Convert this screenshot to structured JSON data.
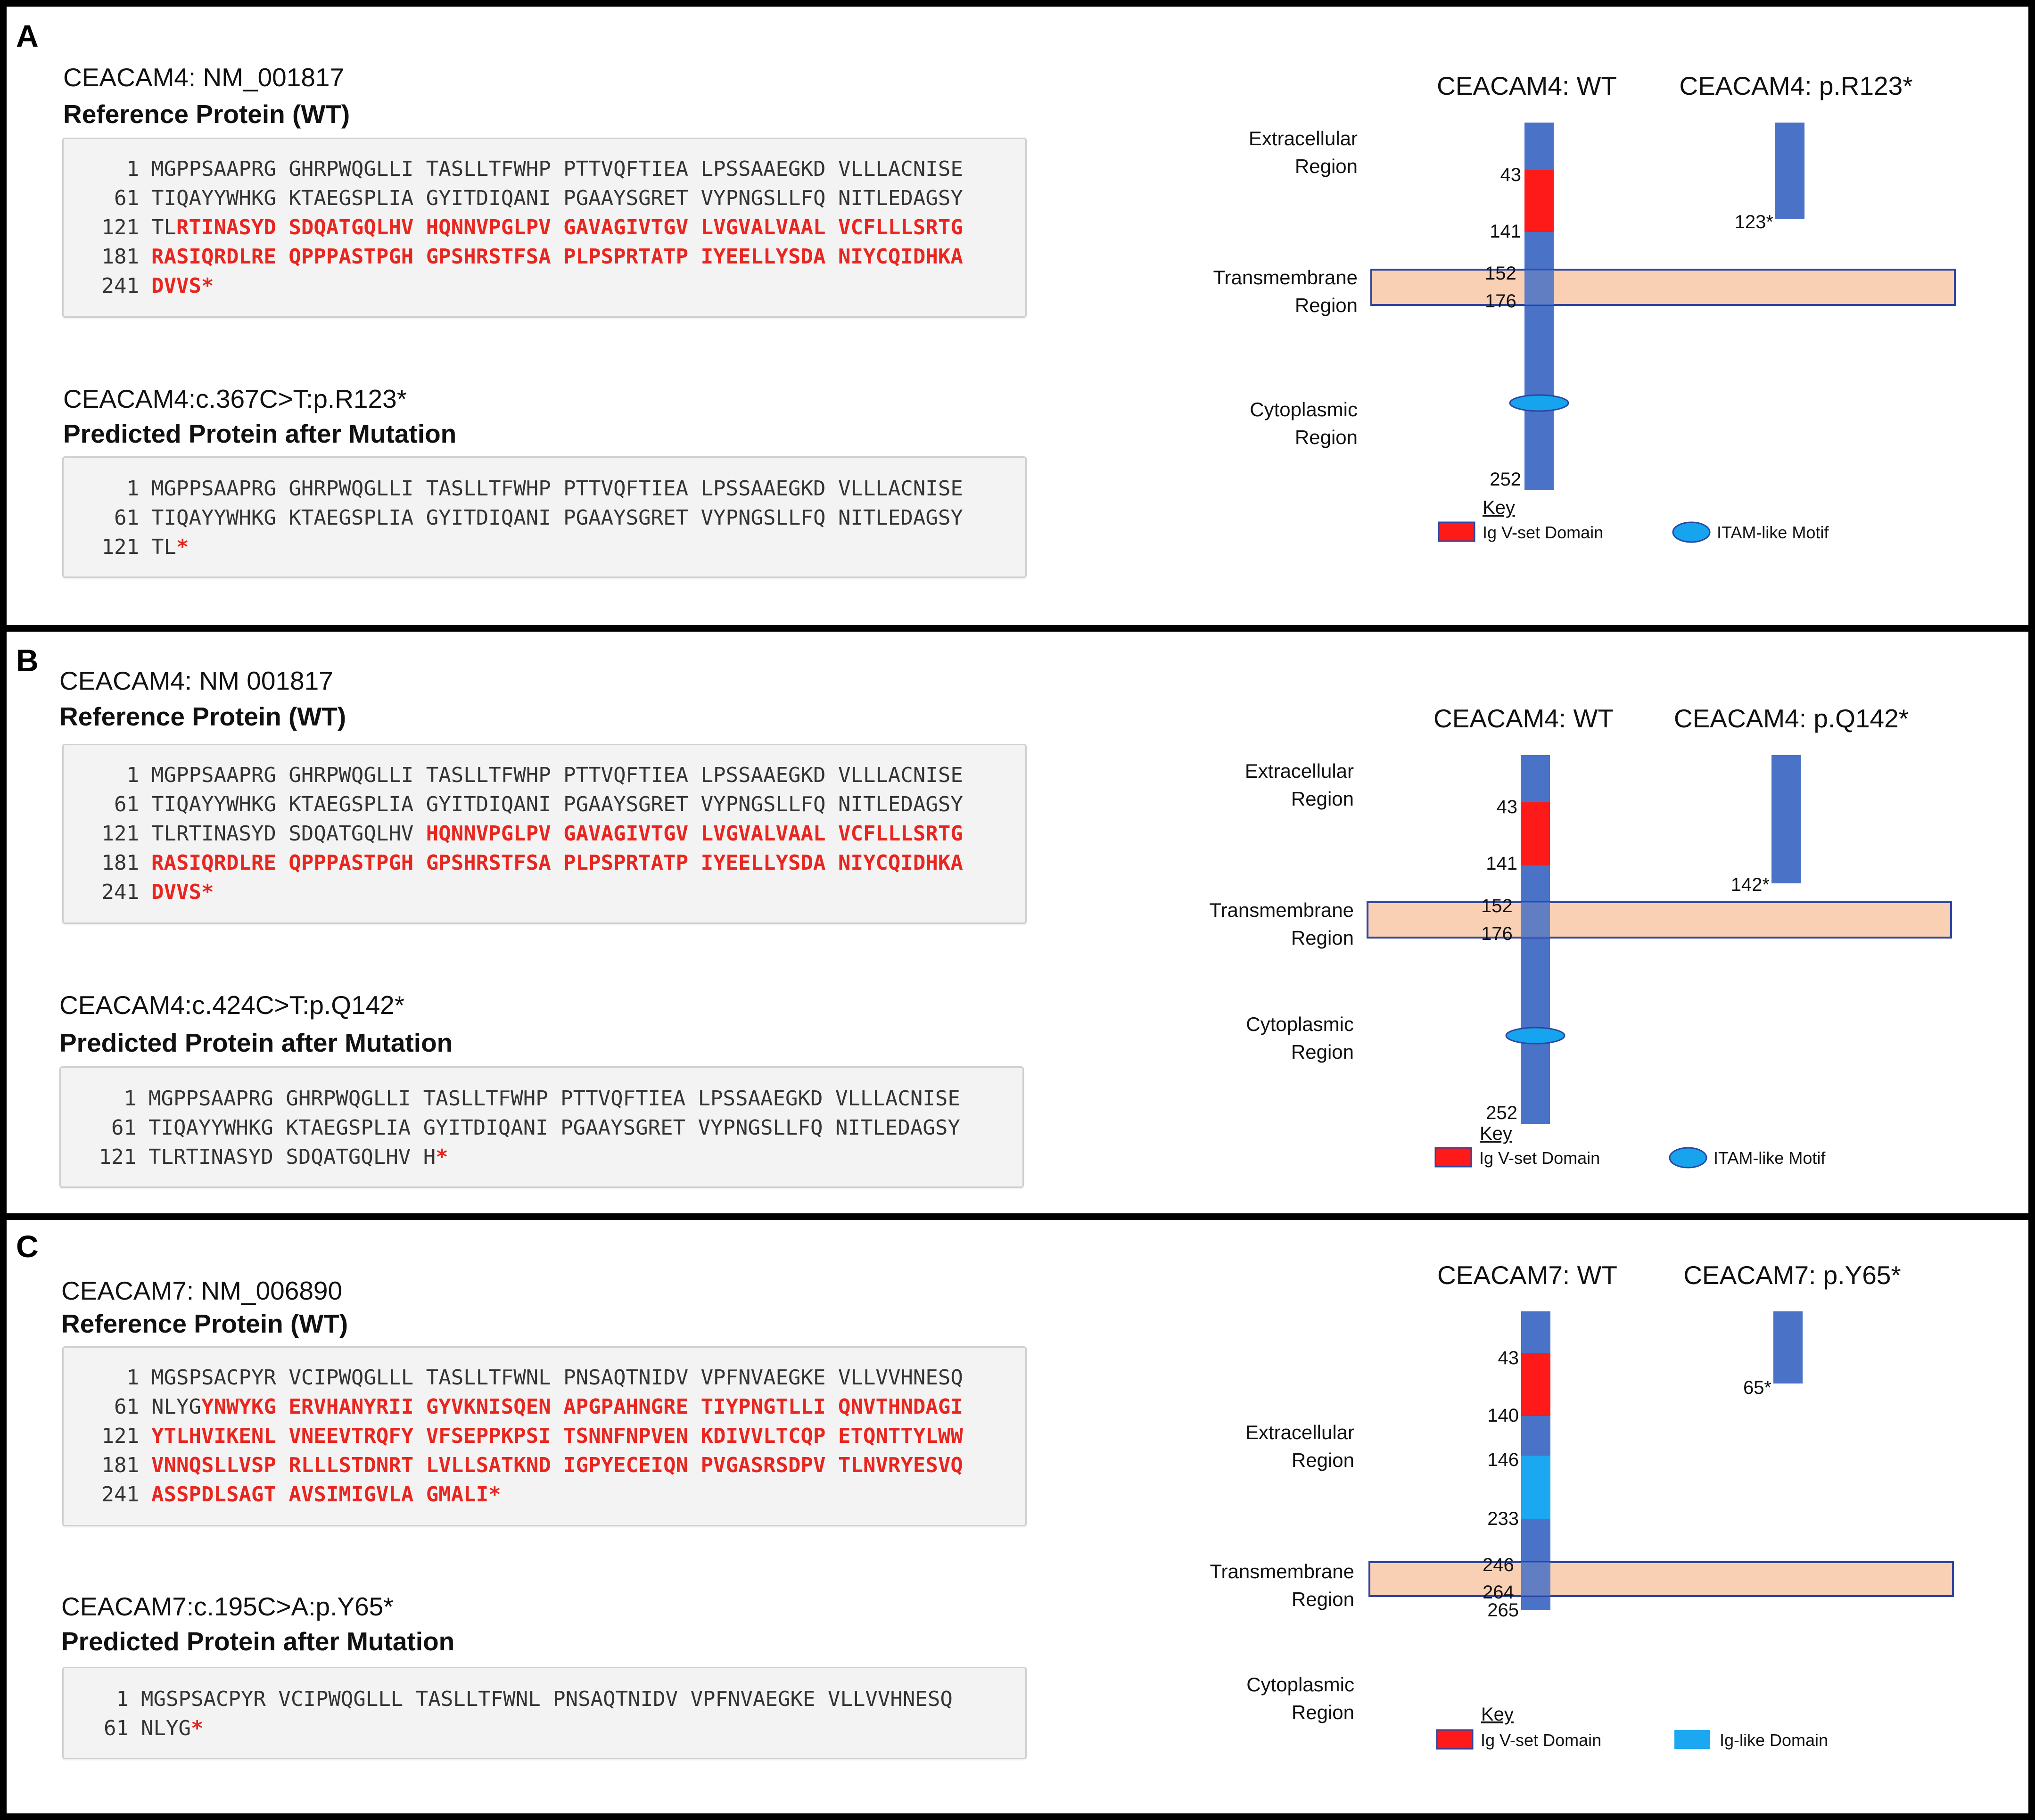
{
  "colors": {
    "membrane_blue": "#4a72c6",
    "ig_vset_red": "#ff1a1a",
    "ig_like_cyan": "#1ca8f0",
    "itam_cyan": "#16a4ee",
    "tm_peach": "#f8c9a9",
    "tm_border": "#2d45a0",
    "seq_red": "#e8261f"
  },
  "panels": [
    {
      "letter": "A",
      "gene_title": "CEACAM4: NM_001817",
      "reference_heading": "Reference Protein (WT)",
      "reference_seq": [
        {
          "num": "1",
          "black": "MGPPSAAPRG GHRPWQGLLI TASLLTFWHP PTTVQFTIEA LPSSAAEGKD VLLLACNISE",
          "red": ""
        },
        {
          "num": "61",
          "black": "TIQAYYWHKG KTAEGSPLIA GYITDIQANI PGAAYSGRET VYPNGSLLFQ NITLEDAGSY",
          "red": ""
        },
        {
          "num": "121",
          "black": "TL",
          "red": "RTINASYD SDQATGQLHV HQNNVPGLPV GAVAGIVTGV LVGVALVAAL VCFLLLSRTG"
        },
        {
          "num": "181",
          "black": "",
          "red": "RASIQRDLRE QPPPASTPGH GPSHRSTFSA PLPSPRTATP IYEELLYSDA NIYCQIDHKA"
        },
        {
          "num": "241",
          "black": "",
          "red": "DVVS*"
        }
      ],
      "mutation_title": "CEACAM4:c.367C>T:p.R123*",
      "predicted_heading": "Predicted Protein after Mutation",
      "predicted_seq": [
        {
          "num": "1",
          "black": "MGPPSAAPRG GHRPWQGLLI TASLLTFWHP PTTVQFTIEA LPSSAAEGKD VLLLACNISE",
          "red": ""
        },
        {
          "num": "61",
          "black": "TIQAYYWHKG KTAEGSPLIA GYITDIQANI PGAAYSGRET VYPNGSLLFQ NITLEDAGSY",
          "red": ""
        },
        {
          "num": "121",
          "black": "TL",
          "red": "*"
        }
      ],
      "diagram": {
        "wt_title": "CEACAM4: WT",
        "mut_title": "CEACAM4: p.R123*",
        "extracellular_label": [
          "Extracellular",
          "Region"
        ],
        "transmembrane_label": [
          "Transmembrane",
          "Region"
        ],
        "cytoplasmic_label": [
          "Cytoplasmic",
          "Region"
        ],
        "positions": [
          "43",
          "141",
          "152",
          "176",
          "252"
        ],
        "mut_position": "123*",
        "key_title": "Key",
        "key_item1": "Ig V-set Domain",
        "key_item2": "ITAM-like Motif"
      }
    },
    {
      "letter": "B",
      "gene_title": "CEACAM4: NM  001817",
      "reference_heading": "Reference Protein (WT)",
      "reference_seq": [
        {
          "num": "1",
          "black": "MGPPSAAPRG GHRPWQGLLI TASLLTFWHP PTTVQFTIEA LPSSAAEGKD VLLLACNISE",
          "red": ""
        },
        {
          "num": "61",
          "black": "TIQAYYWHKG KTAEGSPLIA GYITDIQANI PGAAYSGRET VYPNGSLLFQ NITLEDAGSY",
          "red": ""
        },
        {
          "num": "121",
          "black": "TLRTINASYD SDQATGQLHV ",
          "red": "HQNNVPGLPV GAVAGIVTGV LVGVALVAAL VCFLLLSRTG"
        },
        {
          "num": "181",
          "black": "",
          "red": "RASIQRDLRE QPPPASTPGH GPSHRSTFSA PLPSPRTATP IYEELLYSDA NIYCQIDHKA"
        },
        {
          "num": "241",
          "black": "",
          "red": "DVVS*"
        }
      ],
      "mutation_title": "CEACAM4:c.424C>T:p.Q142*",
      "predicted_heading": "Predicted Protein after Mutation",
      "predicted_seq": [
        {
          "num": "1",
          "black": "MGPPSAAPRG GHRPWQGLLI TASLLTFWHP PTTVQFTIEA LPSSAAEGKD VLLLACNISE",
          "red": ""
        },
        {
          "num": "61",
          "black": "TIQAYYWHKG KTAEGSPLIA GYITDIQANI PGAAYSGRET VYPNGSLLFQ NITLEDAGSY",
          "red": ""
        },
        {
          "num": "121",
          "black": "TLRTINASYD SDQATGQLHV H",
          "red": "*"
        }
      ],
      "diagram": {
        "wt_title": "CEACAM4: WT",
        "mut_title": "CEACAM4: p.Q142*",
        "extracellular_label": [
          "Extracellular",
          "Region"
        ],
        "transmembrane_label": [
          "Transmembrane",
          "Region"
        ],
        "cytoplasmic_label": [
          "Cytoplasmic",
          "Region"
        ],
        "positions": [
          "43",
          "141",
          "152",
          "176",
          "252"
        ],
        "mut_position": "142*",
        "key_title": "Key",
        "key_item1": "Ig V-set Domain",
        "key_item2": "ITAM-like Motif"
      }
    },
    {
      "letter": "C",
      "gene_title": "CEACAM7: NM_006890",
      "reference_heading": "Reference Protein  (WT)",
      "reference_seq": [
        {
          "num": "1",
          "black": "MGSPSACPYR VCIPWQGLLL TASLLTFWNL PNSAQTNIDV VPFNVAEGKE VLLVVHNESQ",
          "red": ""
        },
        {
          "num": "61",
          "black": "NLYG",
          "red": "YNWYKG ERVHANYRII GYVKNISQEN APGPAHNGRE TIYPNGTLLI QNVTHNDAGI"
        },
        {
          "num": "121",
          "black": "",
          "red": "YTLHVIKENL VNEEVTRQFY VFSEPPKPSI TSNNFNPVEN KDIVVLTCQP ETQNTTYLWW"
        },
        {
          "num": "181",
          "black": "",
          "red": "VNNQSLLVSP RLLLSTDNRT LVLLSATKND IGPYECEIQN PVGASRSDPV TLNVRYESVQ"
        },
        {
          "num": "241",
          "black": "",
          "red": "ASSPDLSAGT AVSIMIGVLA GMALI*"
        }
      ],
      "mutation_title": "CEACAM7:c.195C>A:p.Y65*",
      "predicted_heading": "Predicted Protein after Mutation",
      "predicted_seq": [
        {
          "num": "1",
          "black": "MGSPSACPYR VCIPWQGLLL TASLLTFWNL PNSAQTNIDV VPFNVAEGKE VLLVVHNESQ",
          "red": ""
        },
        {
          "num": "61",
          "black": "NLYG",
          "red": "*"
        }
      ],
      "diagram": {
        "wt_title": "CEACAM7: WT",
        "mut_title": "CEACAM7: p.Y65*",
        "extracellular_label": [
          "Extracellular",
          "Region"
        ],
        "transmembrane_label": [
          "Transmembrane",
          "Region"
        ],
        "cytoplasmic_label": [
          "Cytoplasmic",
          "Region"
        ],
        "positions": [
          "43",
          "140",
          "146",
          "233",
          "246",
          "264",
          "265"
        ],
        "mut_position": "65*",
        "key_title": "Key",
        "key_item1": "Ig V-set Domain",
        "key_item2": "Ig-like Domain"
      }
    }
  ]
}
